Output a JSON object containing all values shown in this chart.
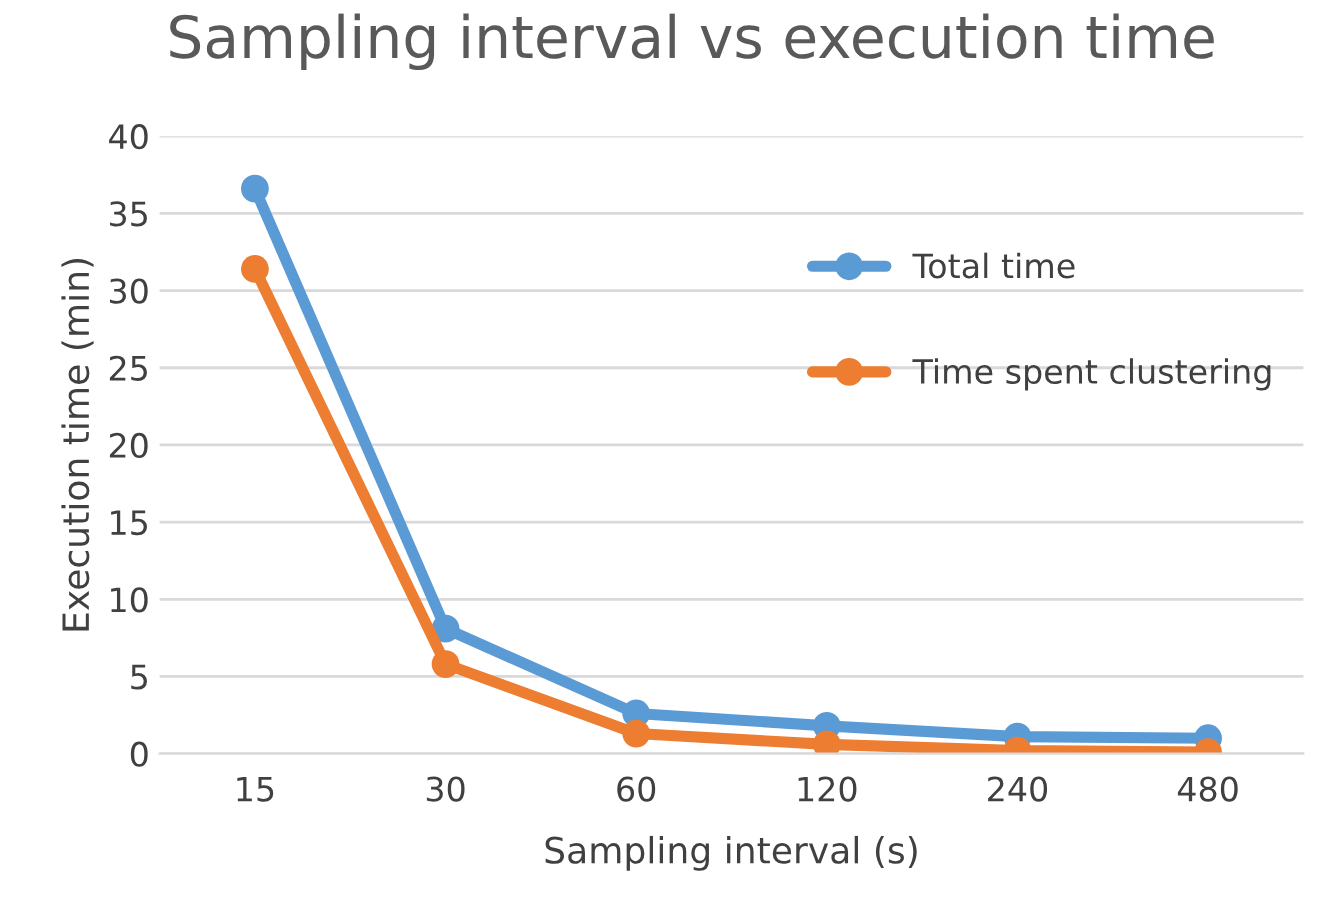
{
  "chart_data": {
    "type": "line",
    "title": "Sampling interval vs execution time",
    "xlabel": "Sampling interval (s)",
    "ylabel": "Execution time (min)",
    "categories": [
      "15",
      "30",
      "60",
      "120",
      "240",
      "480"
    ],
    "series": [
      {
        "name": "Total time",
        "color": "#5b9bd5",
        "values": [
          36.6,
          8.1,
          2.6,
          1.8,
          1.1,
          1.0
        ]
      },
      {
        "name": "Time spent clustering",
        "color": "#ed7d31",
        "values": [
          31.4,
          5.8,
          1.3,
          0.6,
          0.2,
          0.1
        ]
      }
    ],
    "ylim": [
      0,
      40
    ],
    "yticks": [
      0,
      5,
      10,
      15,
      20,
      25,
      30,
      35,
      40
    ],
    "grid": "y",
    "legend": "top right",
    "marker": "circle",
    "line_style": "solid"
  }
}
